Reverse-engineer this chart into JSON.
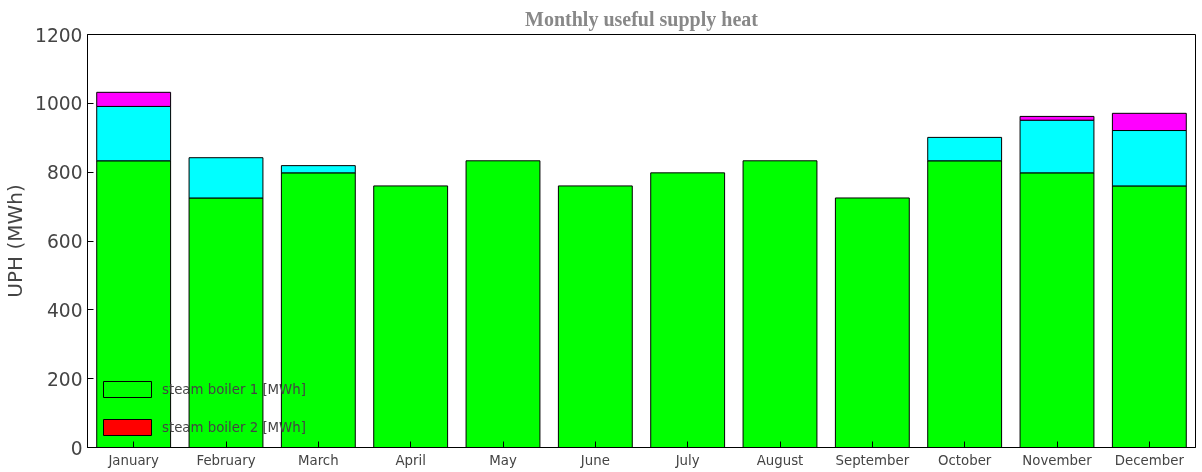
{
  "chart_data": {
    "type": "bar",
    "title": "Monthly useful supply heat",
    "ylabel": "UPH (MWh)",
    "stacked": true,
    "categories": [
      "January",
      "February",
      "March",
      "April",
      "May",
      "June",
      "July",
      "August",
      "September",
      "October",
      "November",
      "December"
    ],
    "series": [
      {
        "name": "steam boiler 1 [MWh]",
        "color": "#00ff00",
        "values": [
          833,
          725,
          798,
          760,
          833,
          760,
          798,
          833,
          725,
          833,
          798,
          760
        ]
      },
      {
        "name": "steam boiler 2 [MWh]",
        "color": "#ff0000",
        "values": [
          null,
          null,
          null,
          null,
          null,
          null,
          null,
          null,
          null,
          null,
          null,
          null
        ]
      },
      {
        "color": "#00ffff",
        "values": [
          158,
          117,
          21,
          null,
          null,
          null,
          null,
          null,
          null,
          68,
          153,
          161
        ]
      },
      {
        "color": "#ff00ff",
        "values": [
          41,
          null,
          null,
          null,
          null,
          null,
          null,
          null,
          null,
          null,
          11,
          50
        ]
      }
    ],
    "ylim": [
      0,
      1200
    ],
    "yticks": [
      0,
      200,
      400,
      600,
      800,
      1000,
      1200
    ],
    "legend": "bottom left"
  }
}
